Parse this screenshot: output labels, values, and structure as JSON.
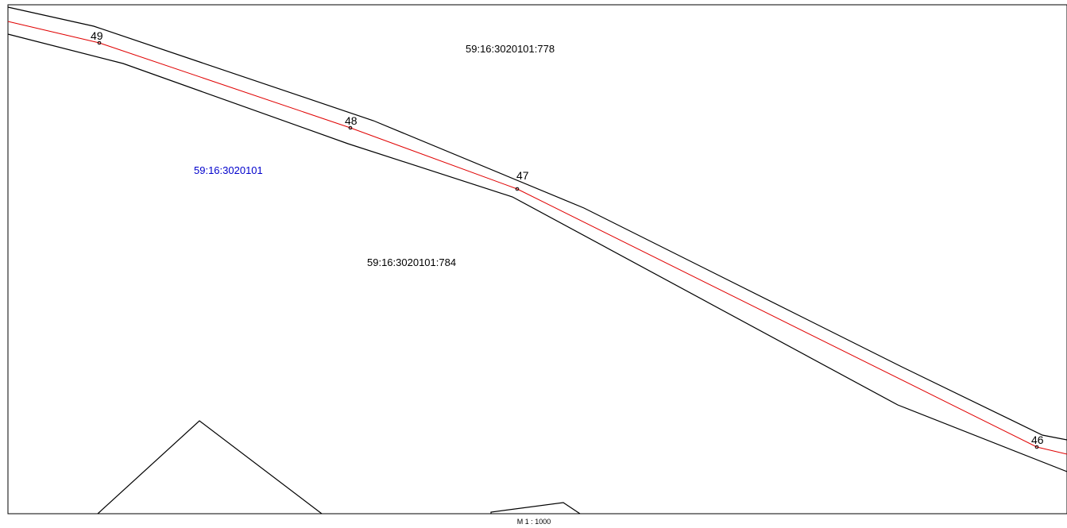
{
  "map": {
    "scale": "M 1 : 1000",
    "colors": {
      "boundary": "#000000",
      "centerline": "#e00000",
      "quarter_label": "#0000cc",
      "parcel_label": "#000000"
    },
    "parcels": [
      {
        "id": "parcel-778",
        "text": "59:16:3020101:778"
      },
      {
        "id": "parcel-784",
        "text": "59:16:3020101:784"
      }
    ],
    "quarter": {
      "text": "59:16:3020101"
    },
    "points": [
      {
        "id": "49",
        "text": "49"
      },
      {
        "id": "48",
        "text": "48"
      },
      {
        "id": "47",
        "text": "47"
      },
      {
        "id": "46",
        "text": "46"
      }
    ]
  }
}
